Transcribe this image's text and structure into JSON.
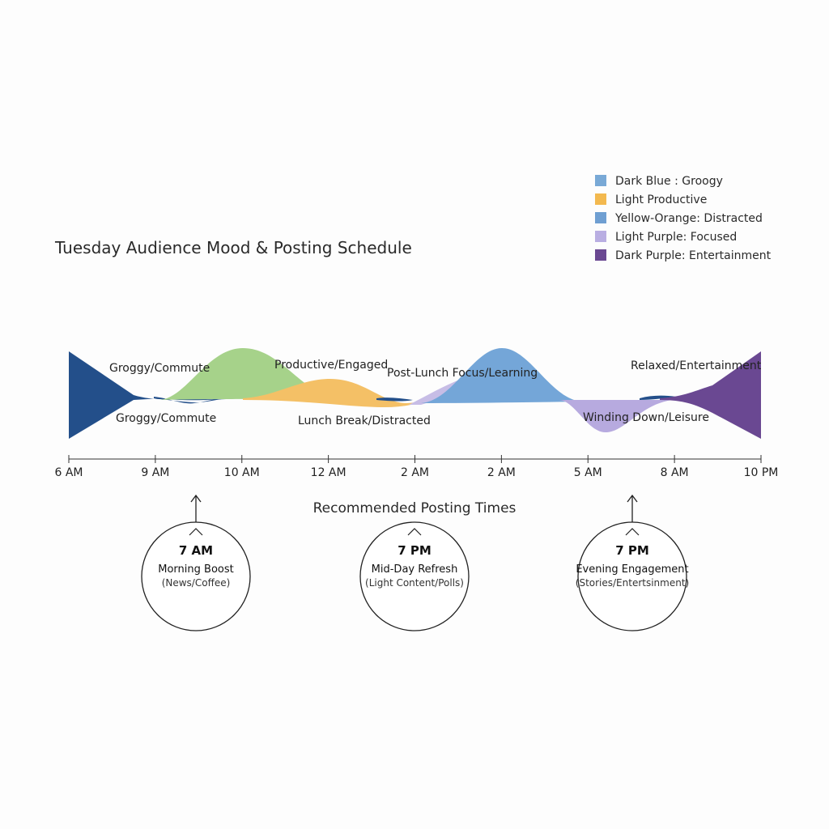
{
  "chart_data": {
    "type": "area",
    "title": "Tuesday Audience Mood & Posting Schedule",
    "x_ticks": [
      "6 AM",
      "9 AM",
      "10 AM",
      "12 AM",
      "2 AM",
      "2 AM",
      "5 AM",
      "8 AM",
      "10 PM"
    ],
    "legend": [
      {
        "label": "Dark Blue : Groogy",
        "color": "#79a9d6"
      },
      {
        "label": "Light Productive",
        "color": "#f3b94f"
      },
      {
        "label": "Yellow-Orange: Distracted",
        "color": "#6f9fd2"
      },
      {
        "label": "Light Purple: Focused",
        "color": "#b9aee2"
      },
      {
        "label": "Dark Purple: Entertainment",
        "color": "#6a4892"
      }
    ],
    "series": [
      {
        "key": "groggy",
        "color": "#234f8a"
      },
      {
        "key": "productive",
        "color": "#a6d28a"
      },
      {
        "key": "distracted",
        "color": "#f4c066"
      },
      {
        "key": "light-purple",
        "color": "#c7bde6"
      },
      {
        "key": "learning",
        "color": "#74a6d8"
      },
      {
        "key": "winding",
        "color": "#b7aadf"
      },
      {
        "key": "entertainment",
        "color": "#6a4892"
      }
    ],
    "mood_labels": [
      "Groggy/Commute",
      "Groggy/Commute",
      "Productive/Engaged",
      "Lunch Break/Distracted",
      "Post-Lunch Focus/Learning",
      "Winding Down/Leisure",
      "Relaxed/Entertainment"
    ]
  },
  "recommended": {
    "heading": "Recommended Posting Times",
    "slots": [
      {
        "time": "7 AM",
        "name": "Morning Boost",
        "detail": "(News/Coffee)"
      },
      {
        "time": "7 PM",
        "name": "Mid-Day Refresh",
        "detail": "(Light Content/Polls)"
      },
      {
        "time": "7 PM",
        "name": "Evening Engagement",
        "detail": "(Stories/Entertsinment)"
      }
    ]
  }
}
